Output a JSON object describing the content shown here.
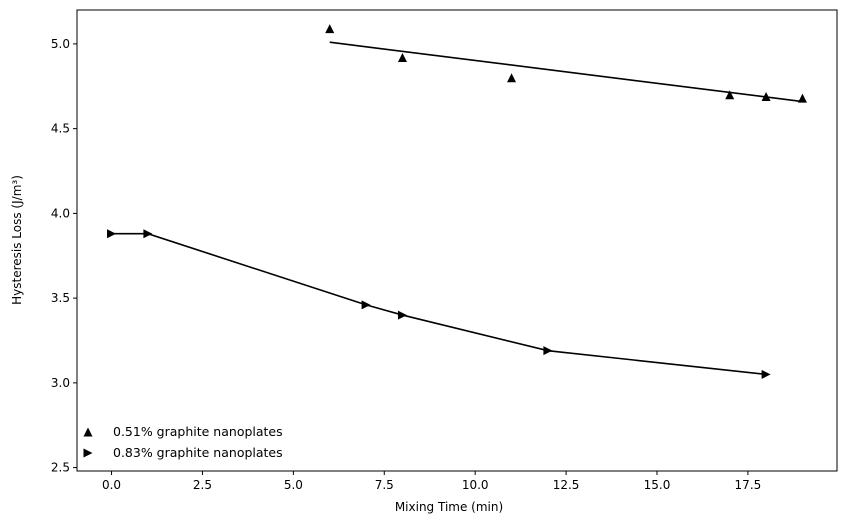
{
  "chart_data": {
    "type": "scatter",
    "title": "",
    "xlabel": "Mixing Time (min)",
    "ylabel": "Hysteresis Loss (J/m³)",
    "xlim": [
      -0.95,
      19.95
    ],
    "ylim": [
      2.48,
      5.2
    ],
    "x_ticks": [
      0.0,
      2.5,
      5.0,
      7.5,
      10.0,
      12.5,
      15.0,
      17.5
    ],
    "x_tick_labels": [
      "0.0",
      "2.5",
      "5.0",
      "7.5",
      "10.0",
      "12.5",
      "15.0",
      "17.5"
    ],
    "y_ticks": [
      2.5,
      3.0,
      3.5,
      4.0,
      4.5,
      5.0
    ],
    "y_tick_labels": [
      "2.5",
      "3.0",
      "3.5",
      "4.0",
      "4.5",
      "5.0"
    ],
    "grid": false,
    "legend_position": "lower-left",
    "color": "#000000",
    "series": [
      {
        "name": "0.51% graphite nanoplates",
        "marker": "triangle-up",
        "x": [
          6,
          8,
          11,
          17,
          18,
          19
        ],
        "y": [
          5.09,
          4.92,
          4.8,
          4.7,
          4.69,
          4.68
        ],
        "fit_line": {
          "x": [
            6,
            19
          ],
          "y": [
            5.01,
            4.66
          ]
        }
      },
      {
        "name": "0.83% graphite nanoplates",
        "marker": "triangle-right",
        "x": [
          0,
          1,
          7,
          8,
          12,
          18
        ],
        "y": [
          3.88,
          3.88,
          3.46,
          3.4,
          3.19,
          3.05
        ],
        "connect": true
      }
    ]
  }
}
